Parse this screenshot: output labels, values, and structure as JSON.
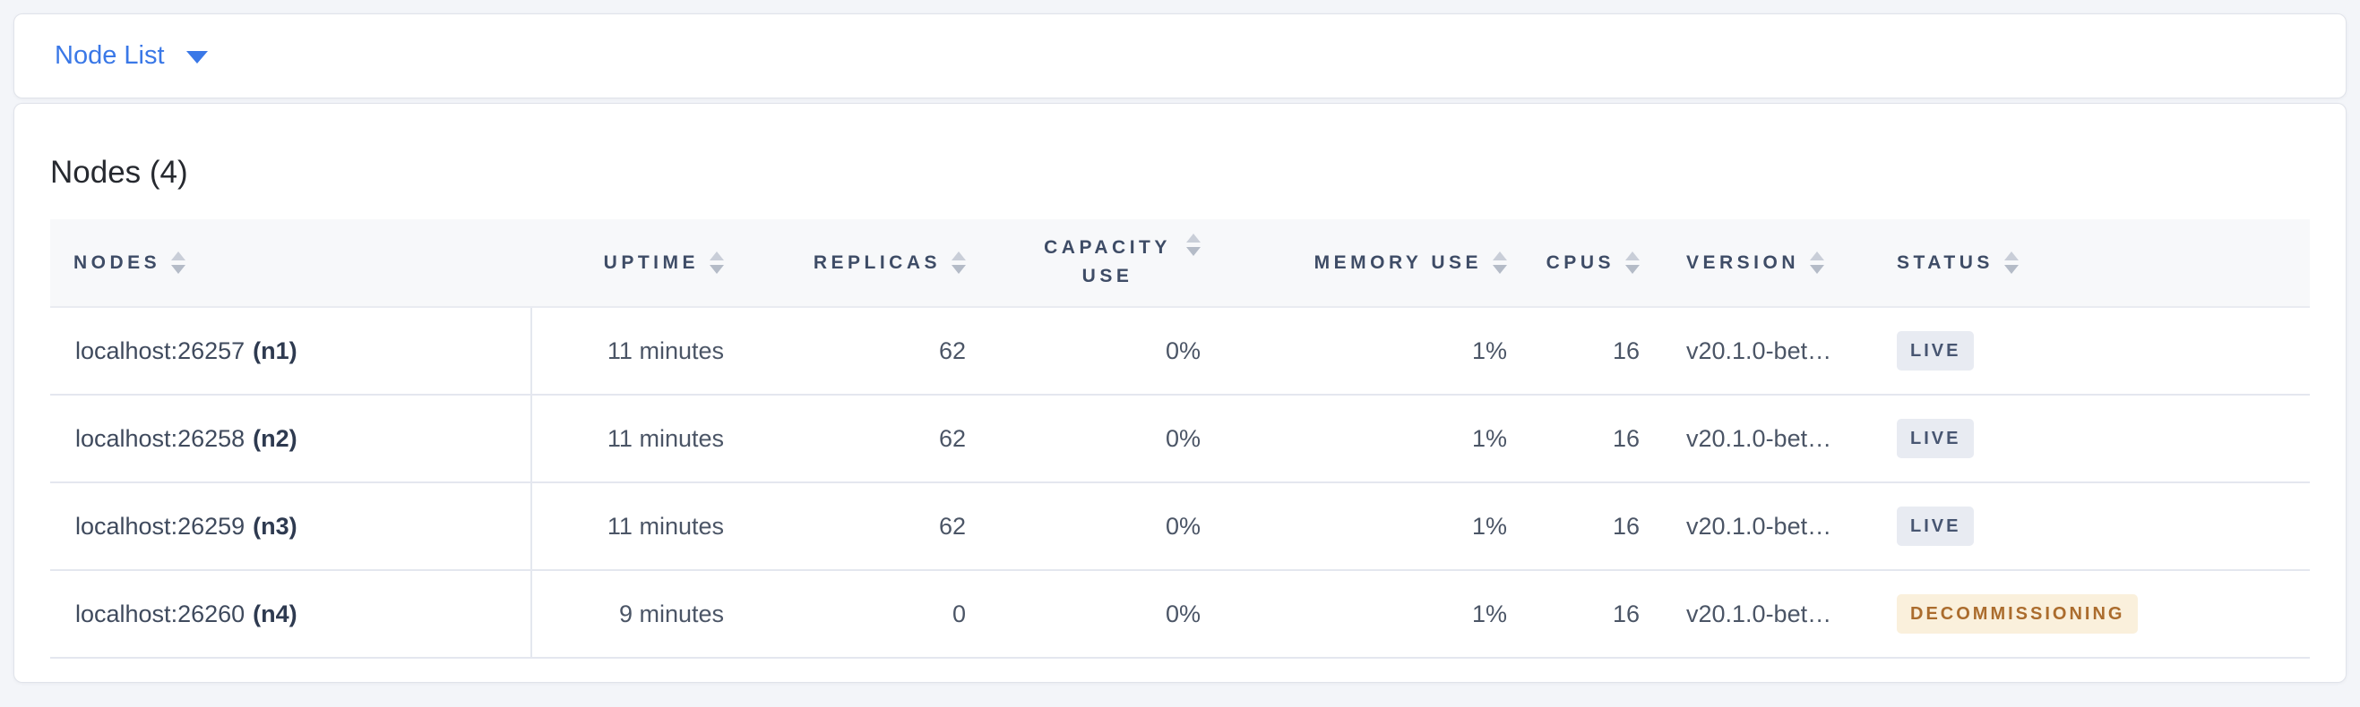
{
  "colors": {
    "accent_blue": "#3a78e7",
    "page_background": "#f3f5f9",
    "header_text": "#3e4c66",
    "live_badge_bg": "#e8ebf2",
    "live_badge_text": "#475571",
    "decommissioning_badge_bg": "#faf0dc",
    "decommissioning_badge_text": "#ab6c2d"
  },
  "selector": {
    "label": "Node List",
    "caret_icon": "caret-down-icon"
  },
  "section": {
    "title": "Nodes (4)"
  },
  "table": {
    "columns": [
      {
        "label": "NODES",
        "slug": "nodes",
        "align": "left",
        "sort_icon": "sort-icon"
      },
      {
        "label": "UPTIME",
        "slug": "uptime",
        "align": "right",
        "sort_icon": "sort-icon"
      },
      {
        "label": "REPLICAS",
        "slug": "replicas",
        "align": "right",
        "sort_icon": "sort-icon"
      },
      {
        "label": "CAPACITY USE",
        "slug": "capacity-use",
        "align": "right",
        "sort_icon": "sort-icon"
      },
      {
        "label": "MEMORY USE",
        "slug": "memory-use",
        "align": "right",
        "sort_icon": "sort-icon"
      },
      {
        "label": "CPUS",
        "slug": "cpus",
        "align": "right",
        "sort_icon": "sort-icon"
      },
      {
        "label": "VERSION",
        "slug": "version",
        "align": "left",
        "sort_icon": "sort-icon"
      },
      {
        "label": "STATUS",
        "slug": "status",
        "align": "left",
        "sort_icon": "sort-icon"
      }
    ],
    "rows": [
      {
        "node": "localhost:26257",
        "id": "(n1)",
        "uptime": "11 minutes",
        "replicas": "62",
        "capacity_use": "0%",
        "memory_use": "1%",
        "cpus": "16",
        "version": "v20.1.0-bet…",
        "status": "LIVE",
        "status_type": "live"
      },
      {
        "node": "localhost:26258",
        "id": "(n2)",
        "uptime": "11 minutes",
        "replicas": "62",
        "capacity_use": "0%",
        "memory_use": "1%",
        "cpus": "16",
        "version": "v20.1.0-bet…",
        "status": "LIVE",
        "status_type": "live"
      },
      {
        "node": "localhost:26259",
        "id": "(n3)",
        "uptime": "11 minutes",
        "replicas": "62",
        "capacity_use": "0%",
        "memory_use": "1%",
        "cpus": "16",
        "version": "v20.1.0-bet…",
        "status": "LIVE",
        "status_type": "live"
      },
      {
        "node": "localhost:26260",
        "id": "(n4)",
        "uptime": "9 minutes",
        "replicas": "0",
        "capacity_use": "0%",
        "memory_use": "1%",
        "cpus": "16",
        "version": "v20.1.0-bet…",
        "status": "DECOMMISSIONING",
        "status_type": "decommissioning"
      }
    ]
  }
}
